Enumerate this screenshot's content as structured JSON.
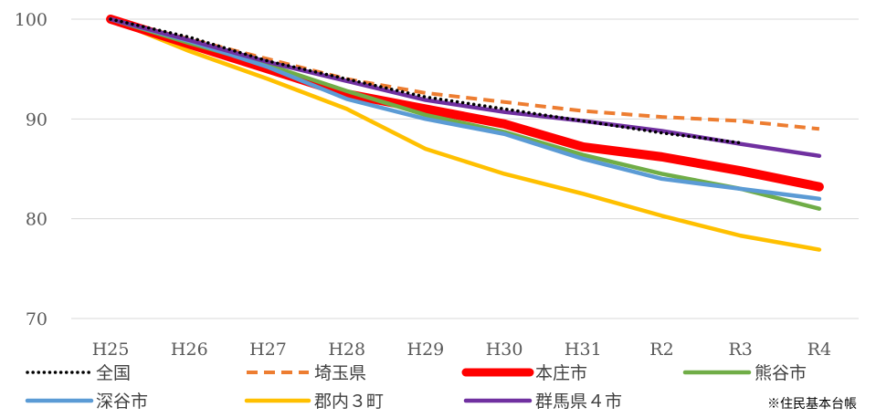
{
  "chart_data": {
    "type": "line",
    "categories": [
      "H25",
      "H26",
      "H27",
      "H28",
      "H29",
      "H30",
      "H31",
      "R2",
      "R3",
      "R4"
    ],
    "ylim": [
      70,
      100
    ],
    "yticks": [
      70,
      80,
      90,
      100
    ],
    "grid": true,
    "legend_placement": "bottom",
    "series": [
      {
        "name": "全国",
        "color": "#000000",
        "style": "dotted",
        "values": [
          100,
          98.2,
          95.8,
          94.0,
          92.2,
          91.0,
          89.8,
          88.6,
          87.6,
          null
        ]
      },
      {
        "name": "埼玉県",
        "color": "#ED7D31",
        "style": "dashed",
        "values": [
          100,
          98.0,
          96.0,
          94.0,
          92.6,
          91.7,
          90.8,
          90.2,
          89.8,
          89.0
        ]
      },
      {
        "name": "本庄市",
        "color": "#FF0000",
        "style": "thick",
        "values": [
          100,
          97.5,
          95.0,
          92.5,
          91.0,
          89.5,
          87.2,
          86.2,
          84.8,
          83.2
        ]
      },
      {
        "name": "熊谷市",
        "color": "#70AD47",
        "style": "solid",
        "values": [
          100,
          97.6,
          95.4,
          92.8,
          90.4,
          88.7,
          86.4,
          84.5,
          83.0,
          81.0
        ]
      },
      {
        "name": "深谷市",
        "color": "#5B9BD5",
        "style": "solid",
        "values": [
          100,
          97.8,
          95.2,
          92.0,
          90.0,
          88.5,
          86.0,
          84.0,
          83.0,
          82.0
        ]
      },
      {
        "name": "郡内３町",
        "color": "#FFC000",
        "style": "solid",
        "values": [
          100,
          96.8,
          94.0,
          91.0,
          87.0,
          84.5,
          82.5,
          80.3,
          78.3,
          76.9
        ]
      },
      {
        "name": "群馬県４市",
        "color": "#7030A0",
        "style": "solid",
        "values": [
          100,
          97.9,
          95.7,
          93.8,
          91.9,
          90.7,
          89.8,
          88.8,
          87.5,
          86.3
        ]
      }
    ],
    "annotation": "※住民基本台帳"
  }
}
